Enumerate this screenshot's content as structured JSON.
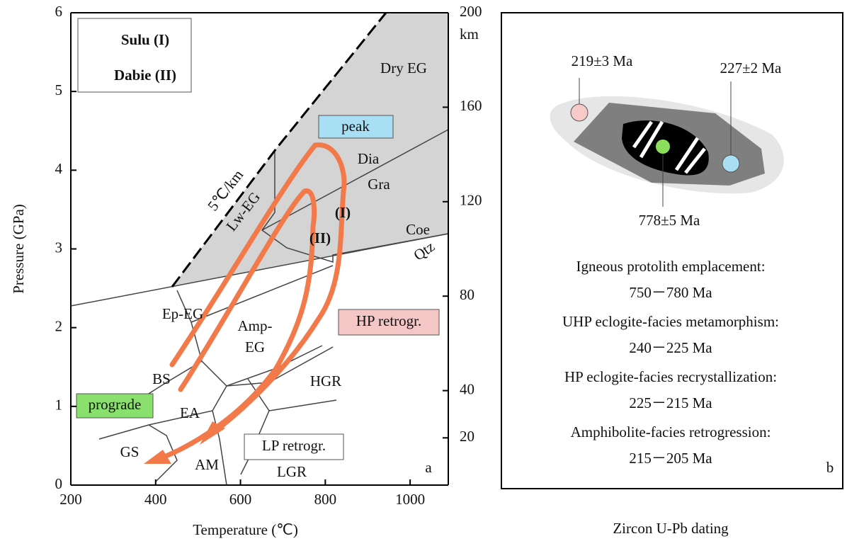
{
  "chart_data": {
    "type": "line",
    "x_label": "Temperature (℃)",
    "y_label": "Pressure (GPa)",
    "y2_label": "km",
    "xlim": [
      200,
      1090
    ],
    "xticks": [
      200,
      400,
      600,
      800,
      1000
    ],
    "ylim": [
      0,
      6
    ],
    "yticks": [
      0,
      1,
      2,
      3,
      4,
      5,
      6
    ],
    "y2lim": [
      0,
      200
    ],
    "y2ticks": [
      20,
      40,
      80,
      120,
      160,
      200
    ],
    "legend": [
      "Sulu (I)",
      "Dabie (II)"
    ],
    "annotations": [
      "Dry EG",
      "peak",
      "Dia",
      "Gra",
      "Coe",
      "Qtz",
      "5℃/km",
      "Lw-EG",
      "(I)",
      "(II)",
      "Ep-EG",
      "Amp-",
      "EG",
      "HP retrogr.",
      "BS",
      "HGR",
      "prograde",
      "EA",
      "GS",
      "AM",
      "LP retrogr.",
      "LGR",
      "a"
    ]
  },
  "panel_b": {
    "ages": [
      "219±3 Ma",
      "227±2 Ma",
      "778±5 Ma"
    ],
    "events": [
      [
        "Igneous protolith emplacement:",
        "750－780 Ma"
      ],
      [
        "UHP eclogite-facies metamorphism:",
        "240－225 Ma"
      ],
      [
        "HP eclogite-facies recrystallization:",
        "225－215 Ma"
      ],
      [
        "Amphibolite-facies retrogression:",
        "215－205 Ma"
      ]
    ],
    "label": "b",
    "caption": "Zircon U-Pb dating"
  }
}
